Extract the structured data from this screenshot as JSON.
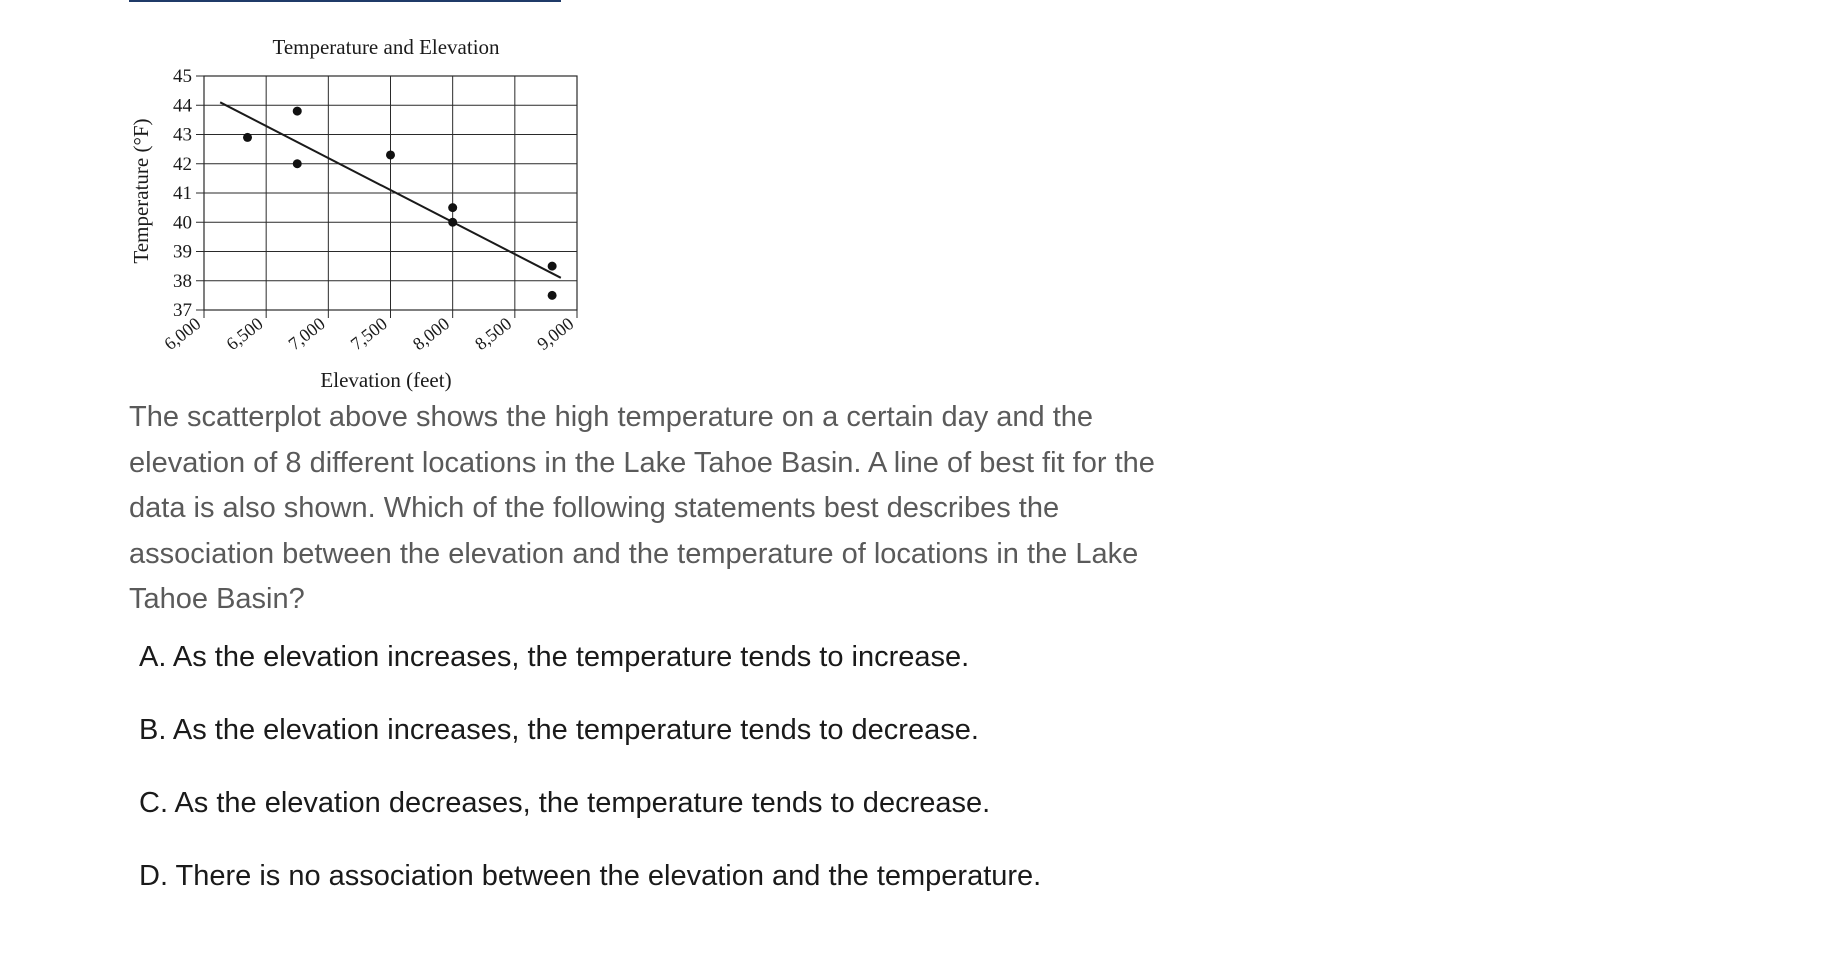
{
  "chart_data": {
    "type": "scatter",
    "title": "Temperature and Elevation",
    "xlabel": "Elevation (feet)",
    "ylabel": "Temperature (°F)",
    "xlim": [
      6000,
      9000
    ],
    "ylim": [
      37,
      45
    ],
    "x_ticks": [
      6000,
      6500,
      7000,
      7500,
      8000,
      8500,
      9000
    ],
    "x_tick_labels": [
      "6,000",
      "6,500",
      "7,000",
      "7,500",
      "8,000",
      "8,500",
      "9,000"
    ],
    "y_ticks": [
      37,
      38,
      39,
      40,
      41,
      42,
      43,
      44,
      45
    ],
    "y_tick_labels": [
      "37",
      "38",
      "39",
      "40",
      "41",
      "42",
      "43",
      "44",
      "45"
    ],
    "grid": true,
    "legend": "none",
    "points": [
      {
        "x": 6350,
        "y": 42.9
      },
      {
        "x": 6750,
        "y": 43.8
      },
      {
        "x": 6750,
        "y": 42.0
      },
      {
        "x": 7500,
        "y": 42.3
      },
      {
        "x": 8000,
        "y": 40.5
      },
      {
        "x": 8000,
        "y": 40.0
      },
      {
        "x": 8800,
        "y": 38.5
      },
      {
        "x": 8800,
        "y": 37.5
      }
    ],
    "best_fit_line": {
      "x": [
        6130,
        8870
      ],
      "y": [
        44.1,
        38.1
      ]
    }
  },
  "question": {
    "text": "The scatterplot above shows the high temperature on a certain day and the elevation of 8 different locations in the Lake Tahoe Basin. A line of best fit for the data is also shown. Which of the following statements best describes the association between the elevation and the temperature of locations in the Lake Tahoe Basin?"
  },
  "choices": [
    {
      "letter": "A",
      "label": "A. As the elevation increases, the temperature tends to increase."
    },
    {
      "letter": "B",
      "label": "B. As the elevation increases, the temperature tends to decrease."
    },
    {
      "letter": "C",
      "label": "C. As the elevation decreases, the temperature tends to decrease."
    },
    {
      "letter": "D",
      "label": "D. There is no association between the elevation and the temperature."
    }
  ]
}
